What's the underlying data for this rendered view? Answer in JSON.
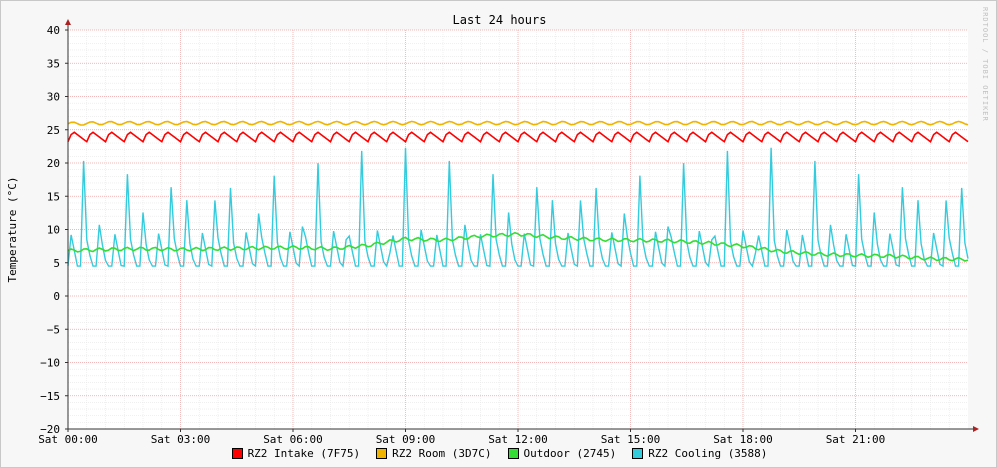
{
  "chart_data": {
    "type": "line",
    "title": "Last 24 hours",
    "ylabel": "Temperature (°C)",
    "xlabel": "",
    "watermark": "RRDTOOL / TOBI OETIKER",
    "ylim": [
      -20,
      40
    ],
    "y_ticks": [
      "40",
      "35",
      "30",
      "25",
      "20",
      "15",
      "10",
      "5",
      "0",
      "−5",
      "−10",
      "−15",
      "−20"
    ],
    "x_ticks": [
      "Sat 00:00",
      "Sat 03:00",
      "Sat 06:00",
      "Sat 09:00",
      "Sat 12:00",
      "Sat 15:00",
      "Sat 18:00",
      "Sat 21:00"
    ],
    "grid": true,
    "legend_position": "bottom",
    "series": [
      {
        "name": "RZ2 Intake (7F75)",
        "color": "#ff0000",
        "pattern": {
          "base": 23.2,
          "peak": 24.8,
          "period_h": 0.5
        },
        "values_hourly": [
          24,
          24,
          24,
          24,
          24,
          24,
          24,
          24,
          24,
          24,
          24,
          24,
          24,
          24,
          24,
          24,
          24,
          24,
          24,
          24,
          24,
          24,
          24,
          24
        ]
      },
      {
        "name": "RZ2 Room (3D7C)",
        "color": "#f0b400",
        "values_hourly": [
          25.9,
          26,
          26,
          26,
          26,
          26,
          26,
          26,
          26,
          26,
          26,
          26,
          26,
          26,
          26,
          26,
          26,
          26,
          26,
          26,
          26,
          26,
          26,
          26
        ]
      },
      {
        "name": "Outdoor (2745)",
        "color": "#33dd33",
        "x_hours": [
          0,
          1,
          2,
          3,
          4,
          5,
          6,
          7,
          8,
          9,
          10,
          11,
          12,
          13,
          14,
          15,
          16,
          17,
          18,
          19,
          20,
          21,
          22,
          23,
          24
        ],
        "values": [
          6.8,
          7.0,
          7.1,
          7.0,
          7.1,
          7.2,
          7.3,
          7.1,
          7.6,
          8.6,
          8.4,
          9.0,
          9.3,
          8.8,
          8.5,
          8.4,
          8.3,
          8.0,
          7.5,
          6.7,
          6.3,
          6.1,
          6.0,
          5.6,
          5.5
        ]
      },
      {
        "name": "RZ2 Cooling (3588)",
        "color": "#33ccdd",
        "pattern": {
          "base": 4.5,
          "peak": 23,
          "period_h": 0.39
        }
      }
    ]
  }
}
